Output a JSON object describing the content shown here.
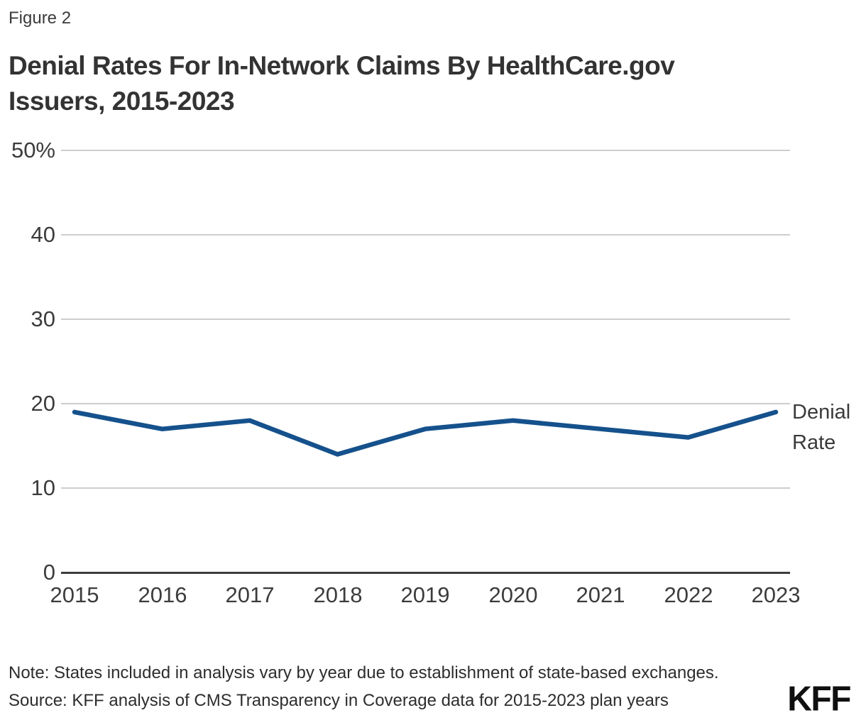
{
  "figure_label": "Figure 2",
  "title_lines": [
    "Denial Rates For In-Network Claims By HealthCare.gov",
    "Issuers, 2015-2023"
  ],
  "chart_data": {
    "type": "line",
    "title": "Denial Rates For In-Network Claims By HealthCare.gov Issuers, 2015-2023",
    "x": [
      2015,
      2016,
      2017,
      2018,
      2019,
      2020,
      2021,
      2022,
      2023
    ],
    "series": [
      {
        "name": "Denial Rate",
        "values": [
          19,
          17,
          18,
          14,
          17,
          18,
          17,
          16,
          19
        ],
        "color": "#15518c"
      }
    ],
    "ylim": [
      0,
      50
    ],
    "yticks": [
      0,
      10,
      20,
      30,
      40,
      50
    ],
    "ytick_labels_desc": [
      "50%",
      "40",
      "30",
      "20",
      "10",
      "0"
    ],
    "grid": "horizontal",
    "legend_position": "right-of-line-end",
    "end_label_lines": [
      "Denial",
      "Rate"
    ]
  },
  "footer": {
    "note": "Note: States included in analysis vary by year due to establishment of state-based exchanges.",
    "source": "Source: KFF analysis of CMS Transparency in Coverage data for 2015-2023 plan years",
    "logo": "KFF"
  },
  "colors": {
    "line": "#15518c",
    "grid": "#cdcdcd",
    "axis": "#3d3d3d",
    "text": "#3a3a3a"
  }
}
